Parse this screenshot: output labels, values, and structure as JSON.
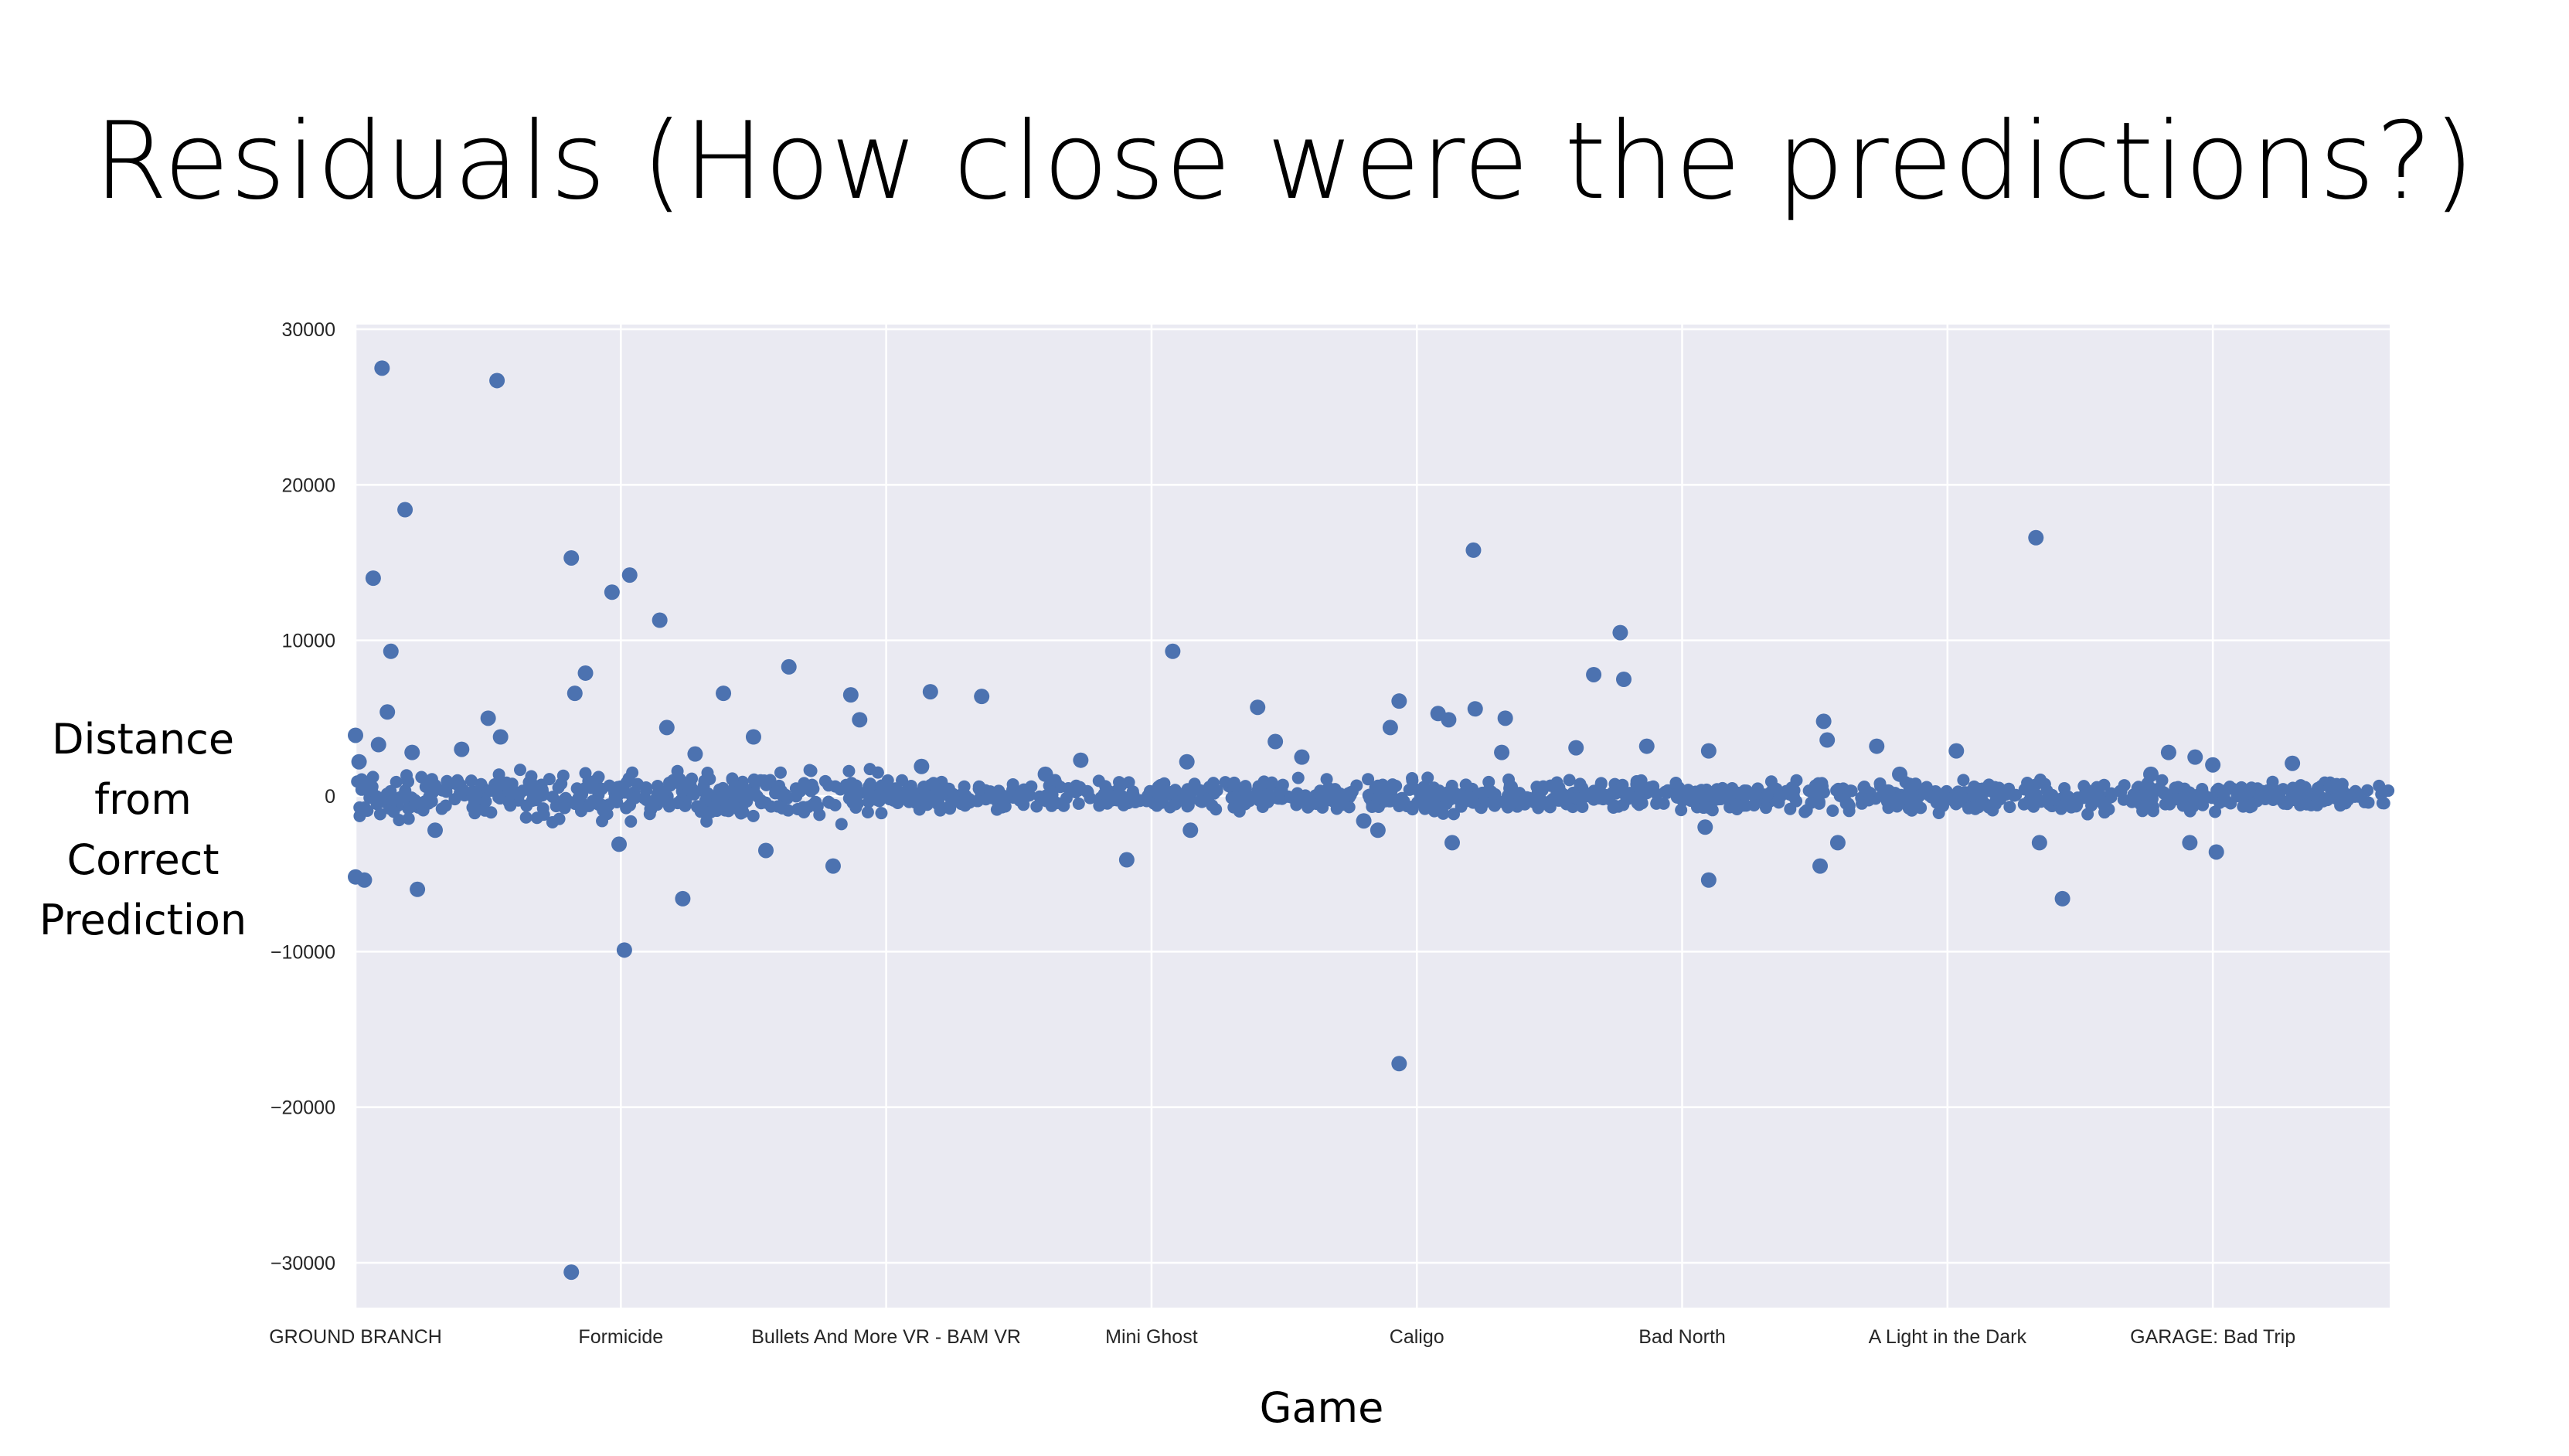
{
  "slide": {
    "title": "Residuals (How close were the predictions?)",
    "ylabel_lines": [
      "Distance",
      "from",
      "Correct",
      "Prediction"
    ],
    "xlabel": "Game"
  },
  "colors": {
    "plot_background": "#eaeaf2",
    "grid": "#ffffff",
    "marker": "#4c72b0"
  },
  "chart_data": {
    "type": "scatter",
    "title": "",
    "xlabel": "Game",
    "ylabel": "Distance from Correct Prediction",
    "ylim": [
      -33000,
      30000
    ],
    "xlim": [
      0,
      1150
    ],
    "grid": true,
    "yticks": [
      30000,
      20000,
      10000,
      0,
      -10000,
      -20000,
      -30000
    ],
    "ytick_labels": [
      "30000",
      "20000",
      "10000",
      "0",
      "−10000",
      "−20000",
      "−30000"
    ],
    "xticks": [
      0,
      150,
      300,
      450,
      600,
      750,
      900,
      1050
    ],
    "xtick_labels": [
      "GROUND BRANCH",
      "Formicide",
      "Bullets And More VR - BAM VR",
      "Mini Ghost",
      "Caligo",
      "Bad North",
      "A Light in the Dark",
      "GARAGE: Bad Trip"
    ],
    "points": [
      [
        15,
        27500
      ],
      [
        80,
        26700
      ],
      [
        28,
        18400
      ],
      [
        10,
        14000
      ],
      [
        20,
        9300
      ],
      [
        18,
        5400
      ],
      [
        122,
        -30600
      ],
      [
        122,
        15300
      ],
      [
        145,
        13100
      ],
      [
        155,
        14200
      ],
      [
        172,
        11300
      ],
      [
        130,
        7900
      ],
      [
        124,
        6600
      ],
      [
        152,
        -9900
      ],
      [
        185,
        -6600
      ],
      [
        149,
        -3100
      ],
      [
        35,
        -6000
      ],
      [
        0,
        -5200
      ],
      [
        5,
        -5400
      ],
      [
        45,
        -2200
      ],
      [
        245,
        8300
      ],
      [
        280,
        6500
      ],
      [
        325,
        6700
      ],
      [
        354,
        6400
      ],
      [
        270,
        -4500
      ],
      [
        232,
        -3500
      ],
      [
        285,
        4900
      ],
      [
        208,
        6600
      ],
      [
        176,
        4400
      ],
      [
        192,
        2700
      ],
      [
        462,
        9300
      ],
      [
        472,
        -2200
      ],
      [
        436,
        -4100
      ],
      [
        470,
        2200
      ],
      [
        510,
        5700
      ],
      [
        520,
        3500
      ],
      [
        585,
        4400
      ],
      [
        590,
        6100
      ],
      [
        612,
        5300
      ],
      [
        618,
        4900
      ],
      [
        632,
        15800
      ],
      [
        633,
        5600
      ],
      [
        650,
        5000
      ],
      [
        590,
        -17200
      ],
      [
        620,
        -3000
      ],
      [
        570,
        -1600
      ],
      [
        578,
        -2200
      ],
      [
        700,
        7800
      ],
      [
        715,
        10500
      ],
      [
        717,
        7500
      ],
      [
        730,
        3200
      ],
      [
        690,
        3100
      ],
      [
        765,
        2900
      ],
      [
        763,
        -2000
      ],
      [
        765,
        -5400
      ],
      [
        830,
        4800
      ],
      [
        832,
        3600
      ],
      [
        860,
        3200
      ],
      [
        828,
        -4500
      ],
      [
        838,
        -3000
      ],
      [
        950,
        16600
      ],
      [
        952,
        -3000
      ],
      [
        965,
        -6600
      ],
      [
        905,
        2900
      ],
      [
        1040,
        2500
      ],
      [
        1037,
        -3000
      ],
      [
        1052,
        -3600
      ],
      [
        1050,
        2000
      ],
      [
        0,
        3900
      ],
      [
        2,
        2200
      ],
      [
        13,
        3300
      ],
      [
        32,
        2800
      ],
      [
        60,
        3000
      ],
      [
        75,
        5000
      ],
      [
        82,
        3800
      ],
      [
        225,
        3800
      ],
      [
        320,
        1900
      ],
      [
        390,
        1400
      ],
      [
        410,
        2300
      ],
      [
        535,
        2500
      ],
      [
        648,
        2800
      ],
      [
        873,
        1400
      ],
      [
        1015,
        1400
      ],
      [
        1025,
        2800
      ],
      [
        1095,
        2100
      ]
    ],
    "band_note": "dense band of residuals near 0 across all games"
  }
}
